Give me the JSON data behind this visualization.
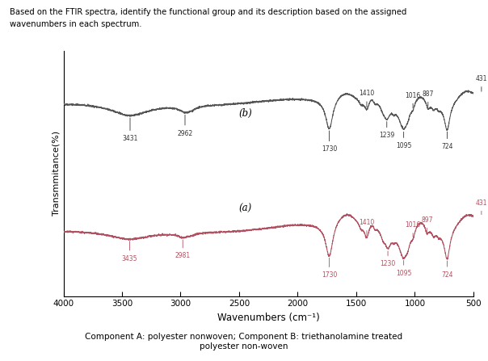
{
  "title_line1": "Based on the FTIR spectra, identify the functional group and its description based on the assigned",
  "title_line2": "wavenumbers in each spectrum.",
  "xlabel": "Wavenumbers (cm⁻¹)",
  "ylabel": "Transmmitance(%)",
  "caption": "Component A: polyester nonwoven; Component B: triethanolamine treated\npolyester non-woven",
  "xlim_left": 4000,
  "xlim_right": 500,
  "color_b": "#555555",
  "color_a": "#b05060",
  "label_b": "(b)",
  "label_a": "(a)",
  "bg_color": "#ffffff",
  "annot_fontsize": 5.5,
  "annot_color_b": "#333333",
  "annot_color_a": "#b05060"
}
